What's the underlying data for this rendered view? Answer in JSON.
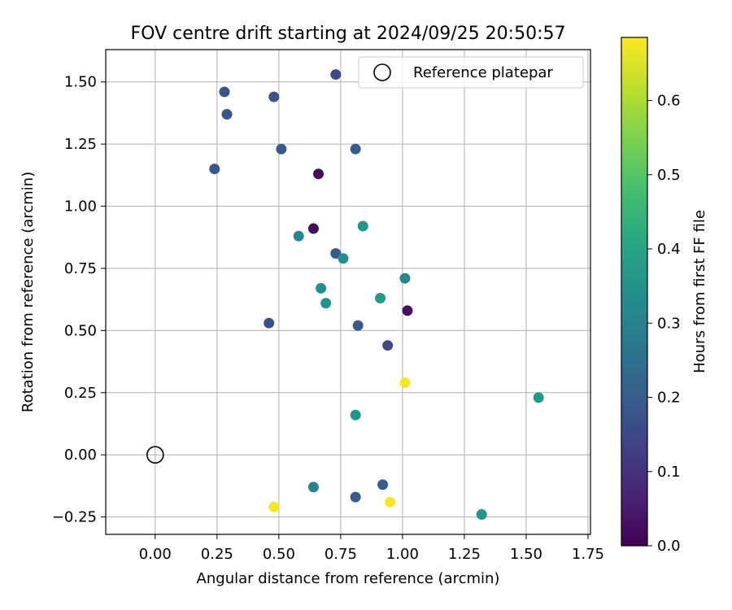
{
  "chart_data": {
    "type": "scatter",
    "title": "FOV centre drift starting at 2024/09/25 20:50:57",
    "xlabel": "Angular distance from reference (arcmin)",
    "ylabel": "Rotation from reference (arcmin)",
    "xlim": [
      -0.2,
      1.76
    ],
    "ylim": [
      -0.32,
      1.63
    ],
    "xticks": [
      "0.00",
      "0.25",
      "0.50",
      "0.75",
      "1.00",
      "1.25",
      "1.50",
      "1.75"
    ],
    "xtick_values": [
      0,
      0.25,
      0.5,
      0.75,
      1.0,
      1.25,
      1.5,
      1.75
    ],
    "yticks": [
      "−0.25",
      "0.00",
      "0.25",
      "0.50",
      "0.75",
      "1.00",
      "1.25",
      "1.50"
    ],
    "ytick_values": [
      -0.25,
      0,
      0.25,
      0.5,
      0.75,
      1.0,
      1.25,
      1.5
    ],
    "grid": true,
    "legend": {
      "placement": "top-right",
      "entries": [
        {
          "label": "Reference platepar",
          "marker": "hollow-circle",
          "color": "#000000"
        }
      ]
    },
    "reference_point": {
      "x": 0,
      "y": 0
    },
    "colorbar": {
      "label": "Hours from first FF file",
      "colormap": "viridis",
      "range": [
        0,
        0.685
      ],
      "ticks": [
        "0.0",
        "0.1",
        "0.2",
        "0.3",
        "0.4",
        "0.5",
        "0.6"
      ],
      "tick_values": [
        0,
        0.1,
        0.2,
        0.3,
        0.4,
        0.5,
        0.6
      ]
    },
    "points": [
      {
        "x": 0.73,
        "y": 1.53,
        "c": 0.15
      },
      {
        "x": 0.28,
        "y": 1.46,
        "c": 0.18
      },
      {
        "x": 0.48,
        "y": 1.44,
        "c": 0.17
      },
      {
        "x": 0.29,
        "y": 1.37,
        "c": 0.18
      },
      {
        "x": 0.51,
        "y": 1.23,
        "c": 0.19
      },
      {
        "x": 0.81,
        "y": 1.23,
        "c": 0.2
      },
      {
        "x": 0.24,
        "y": 1.15,
        "c": 0.19
      },
      {
        "x": 0.66,
        "y": 1.13,
        "c": 0.02
      },
      {
        "x": 0.64,
        "y": 0.91,
        "c": 0.02
      },
      {
        "x": 0.84,
        "y": 0.92,
        "c": 0.36
      },
      {
        "x": 0.58,
        "y": 0.88,
        "c": 0.32
      },
      {
        "x": 0.73,
        "y": 0.81,
        "c": 0.19
      },
      {
        "x": 0.76,
        "y": 0.79,
        "c": 0.34
      },
      {
        "x": 1.01,
        "y": 0.71,
        "c": 0.32
      },
      {
        "x": 0.67,
        "y": 0.67,
        "c": 0.34
      },
      {
        "x": 0.69,
        "y": 0.61,
        "c": 0.35
      },
      {
        "x": 0.91,
        "y": 0.63,
        "c": 0.37
      },
      {
        "x": 1.02,
        "y": 0.58,
        "c": 0.03
      },
      {
        "x": 0.46,
        "y": 0.53,
        "c": 0.17
      },
      {
        "x": 0.82,
        "y": 0.52,
        "c": 0.19
      },
      {
        "x": 0.94,
        "y": 0.44,
        "c": 0.15
      },
      {
        "x": 1.01,
        "y": 0.29,
        "c": 0.68
      },
      {
        "x": 1.55,
        "y": 0.23,
        "c": 0.37
      },
      {
        "x": 0.81,
        "y": 0.16,
        "c": 0.36
      },
      {
        "x": 0.64,
        "y": -0.13,
        "c": 0.31
      },
      {
        "x": 0.92,
        "y": -0.12,
        "c": 0.2
      },
      {
        "x": 0.81,
        "y": -0.17,
        "c": 0.2
      },
      {
        "x": 0.48,
        "y": -0.21,
        "c": 0.68
      },
      {
        "x": 0.95,
        "y": -0.19,
        "c": 0.68
      },
      {
        "x": 1.32,
        "y": -0.24,
        "c": 0.36
      }
    ]
  }
}
